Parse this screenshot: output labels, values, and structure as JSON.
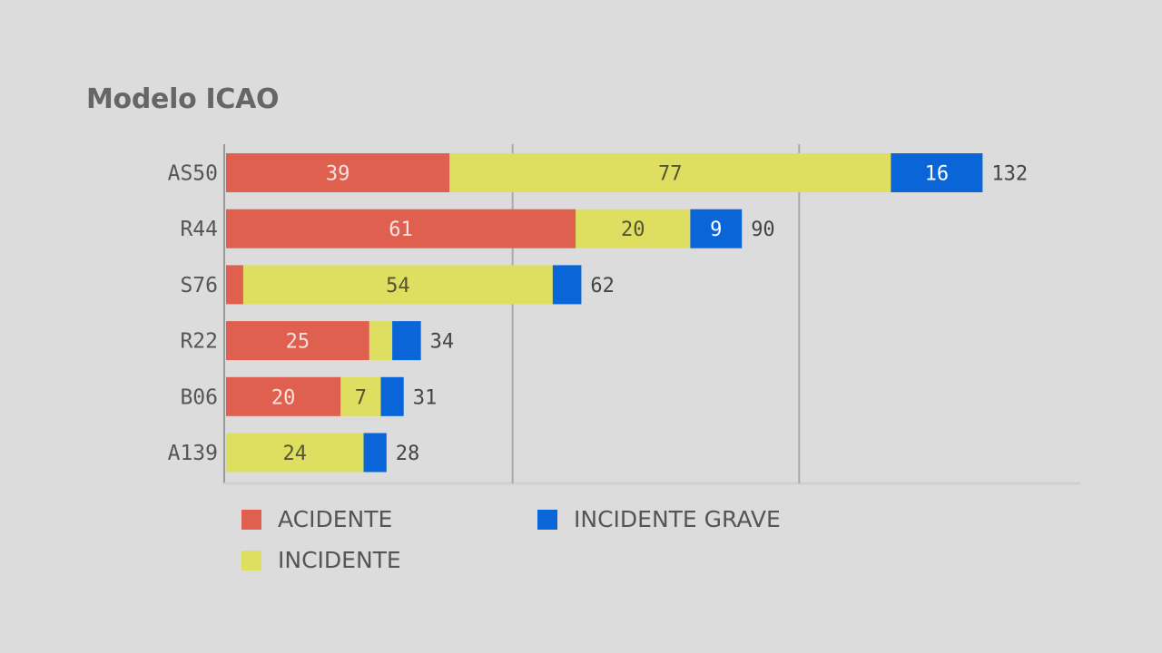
{
  "chart_data": {
    "type": "bar",
    "orientation": "horizontal",
    "stacked": true,
    "title": "Modelo ICAO",
    "categories": [
      "AS50",
      "R44",
      "S76",
      "R22",
      "B06",
      "A139"
    ],
    "series": [
      {
        "name": "ACIDENTE",
        "color": "#e06050",
        "values": [
          39,
          61,
          3,
          25,
          20,
          0
        ]
      },
      {
        "name": "INCIDENTE",
        "color": "#dede60",
        "values": [
          77,
          20,
          54,
          4,
          7,
          24
        ]
      },
      {
        "name": "INCIDENTE GRAVE",
        "color": "#0a66d8",
        "values": [
          16,
          9,
          5,
          5,
          4,
          4
        ]
      }
    ],
    "segment_labels": [
      [
        "39",
        "77",
        "16"
      ],
      [
        "61",
        "20",
        "9"
      ],
      [
        "",
        "54",
        ""
      ],
      [
        "25",
        "",
        ""
      ],
      [
        "20",
        "7",
        ""
      ],
      [
        "",
        "24",
        ""
      ]
    ],
    "totals": [
      "132",
      "90",
      "62",
      "34",
      "31",
      "28"
    ],
    "xlim": [
      0,
      150
    ],
    "gridlines_at": [
      50,
      100
    ],
    "legend": "bottom"
  }
}
